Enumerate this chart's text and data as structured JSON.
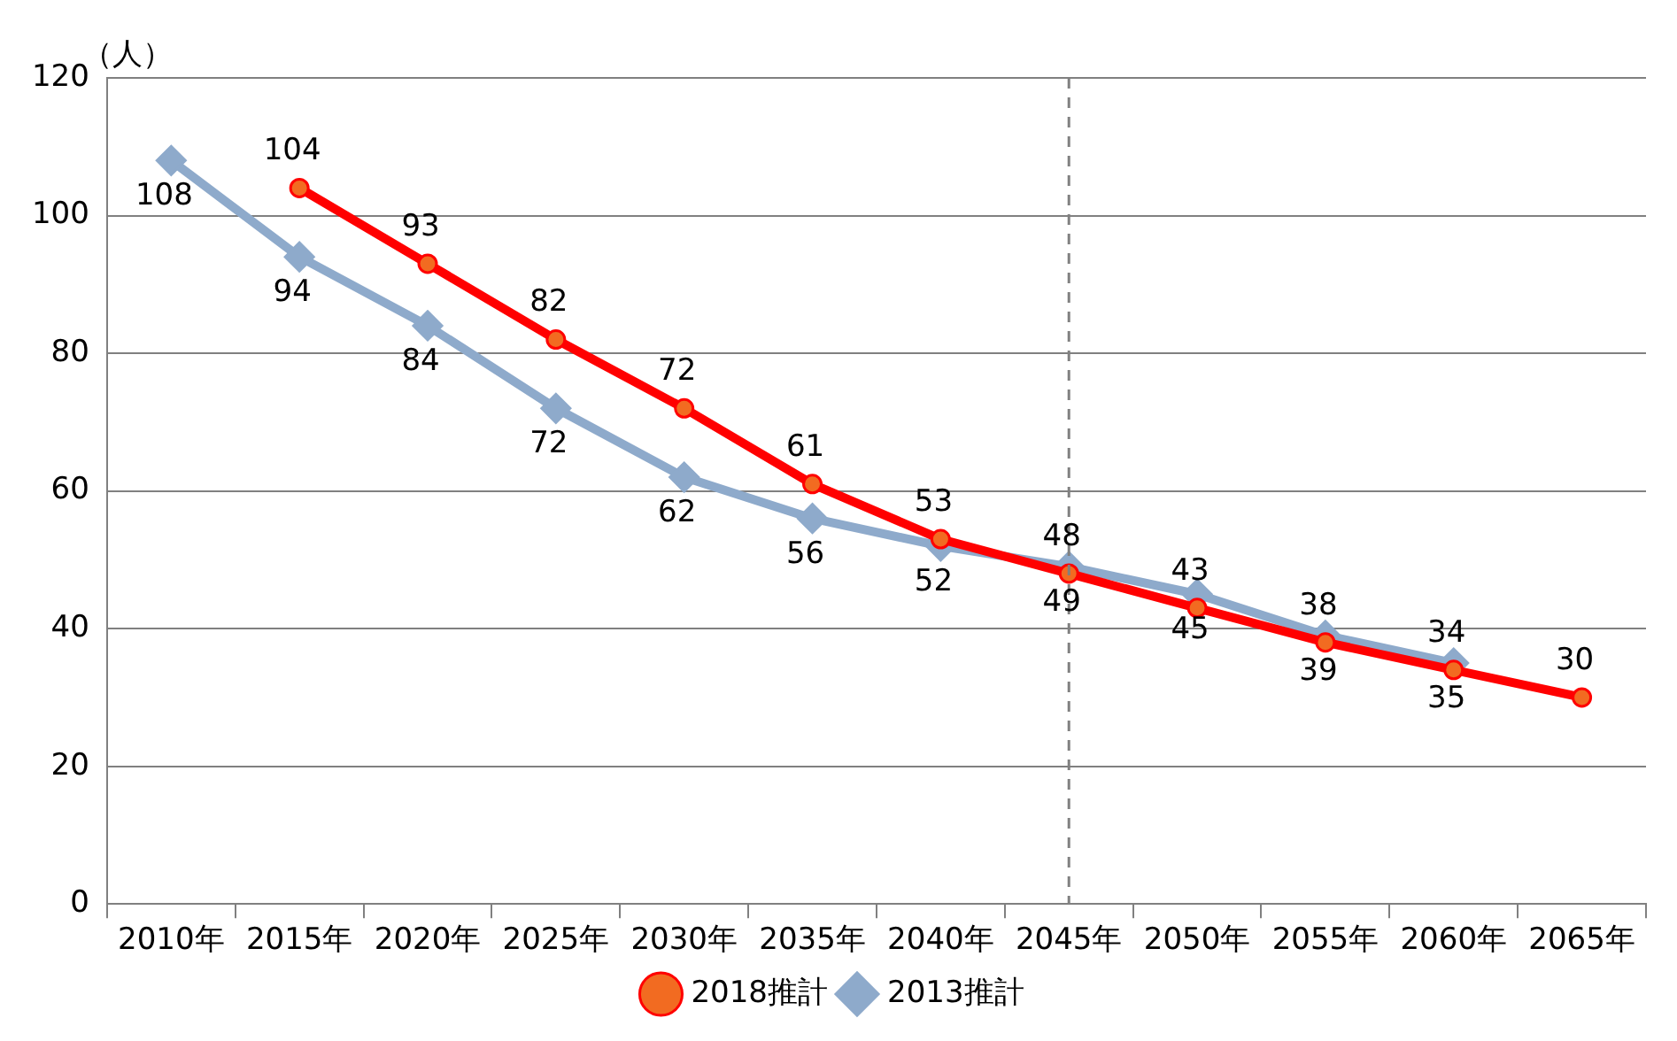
{
  "chart_data": {
    "type": "line",
    "ylabel": "（人）",
    "categories": [
      "2010年",
      "2015年",
      "2020年",
      "2025年",
      "2030年",
      "2035年",
      "2040年",
      "2045年",
      "2050年",
      "2055年",
      "2060年",
      "2065年"
    ],
    "series": [
      {
        "name": "2018推計",
        "color": "#ff0000",
        "marker": "circle",
        "values": [
          null,
          104,
          93,
          82,
          72,
          61,
          53,
          48,
          43,
          38,
          34,
          30
        ]
      },
      {
        "name": "2013推計",
        "color": "#8eaacb",
        "marker": "diamond",
        "values": [
          108,
          94,
          84,
          72,
          62,
          56,
          52,
          49,
          45,
          39,
          35,
          null
        ]
      }
    ],
    "ylim": [
      0,
      120
    ],
    "yticks": [
      0,
      20,
      40,
      60,
      80,
      100,
      120
    ],
    "grid": "y",
    "legend": "bottom",
    "data_labels": true,
    "ref_lines": [
      {
        "axis": "x",
        "value": "2045年",
        "color": "#808080",
        "line_style": "dashed"
      }
    ]
  }
}
